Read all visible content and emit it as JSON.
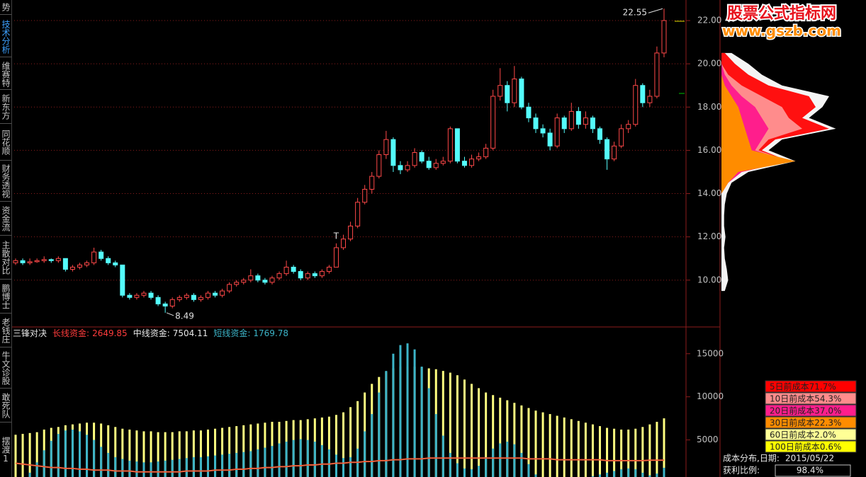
{
  "sidebar": {
    "tabs": [
      "势",
      "技术分析",
      "维赛特",
      "新东方",
      "同花顺",
      "财务透视",
      "资金流",
      "主散对比",
      "鹏博士",
      "老钱庄",
      "牛文诊股",
      "敢死队",
      "摆渡1"
    ],
    "active": 1
  },
  "logo": {
    "title": "股票公式指标网",
    "url": "www.gszb.com"
  },
  "chart_data": [
    {
      "type": "candlestick",
      "up_color": "#ff4848",
      "down_color": "#54fcfc",
      "ylim": [
        7.9,
        22.95
      ],
      "yticks": [
        {
          "value": 10,
          "label": "10.00"
        },
        {
          "value": 12,
          "label": "12.00"
        },
        {
          "value": 14,
          "label": "14.00"
        },
        {
          "value": 16,
          "label": "16.00"
        },
        {
          "value": 18,
          "label": "18.00"
        },
        {
          "value": 20,
          "label": "20.00"
        },
        {
          "value": 22,
          "label": "22.00"
        }
      ],
      "grid": true,
      "max_label": 22.55,
      "min_label": 8.49,
      "marker": "T",
      "ohlc": [
        [
          10.8,
          11.0,
          10.7,
          10.9
        ],
        [
          10.9,
          11.0,
          10.7,
          10.8
        ],
        [
          10.8,
          11.0,
          10.7,
          10.85
        ],
        [
          10.85,
          11.0,
          10.8,
          10.9
        ],
        [
          10.9,
          11.1,
          10.8,
          10.95
        ],
        [
          10.95,
          11.0,
          10.8,
          10.9
        ],
        [
          10.9,
          11.1,
          10.8,
          11.0
        ],
        [
          11.0,
          11.0,
          10.4,
          10.5
        ],
        [
          10.5,
          10.7,
          10.4,
          10.6
        ],
        [
          10.6,
          10.8,
          10.5,
          10.7
        ],
        [
          10.7,
          10.9,
          10.6,
          10.8
        ],
        [
          10.8,
          11.5,
          10.7,
          11.3
        ],
        [
          11.3,
          11.4,
          10.9,
          11.0
        ],
        [
          11.0,
          11.1,
          10.7,
          10.8
        ],
        [
          10.8,
          10.9,
          10.6,
          10.7
        ],
        [
          10.7,
          10.7,
          9.2,
          9.3
        ],
        [
          9.3,
          9.4,
          9.1,
          9.2
        ],
        [
          9.2,
          9.4,
          9.1,
          9.3
        ],
        [
          9.3,
          9.5,
          9.2,
          9.4
        ],
        [
          9.4,
          9.5,
          9.1,
          9.2
        ],
        [
          9.2,
          9.3,
          8.8,
          8.9
        ],
        [
          8.9,
          9.0,
          8.49,
          8.8
        ],
        [
          8.8,
          9.2,
          8.7,
          9.1
        ],
        [
          9.1,
          9.3,
          9.0,
          9.2
        ],
        [
          9.2,
          9.4,
          9.1,
          9.3
        ],
        [
          9.3,
          9.4,
          9.0,
          9.1
        ],
        [
          9.1,
          9.3,
          9.0,
          9.2
        ],
        [
          9.2,
          9.5,
          9.1,
          9.4
        ],
        [
          9.4,
          9.5,
          9.2,
          9.3
        ],
        [
          9.3,
          9.6,
          9.2,
          9.5
        ],
        [
          9.5,
          9.9,
          9.4,
          9.8
        ],
        [
          9.8,
          10.0,
          9.7,
          9.9
        ],
        [
          9.9,
          10.1,
          9.8,
          10.0
        ],
        [
          10.0,
          10.5,
          9.9,
          10.2
        ],
        [
          10.2,
          10.3,
          9.9,
          10.0
        ],
        [
          10.0,
          10.1,
          9.8,
          9.9
        ],
        [
          9.9,
          10.2,
          9.8,
          10.1
        ],
        [
          10.1,
          10.4,
          10.0,
          10.3
        ],
        [
          10.3,
          10.9,
          10.2,
          10.6
        ],
        [
          10.6,
          10.7,
          10.3,
          10.4
        ],
        [
          10.4,
          10.5,
          10.0,
          10.1
        ],
        [
          10.1,
          10.4,
          10.0,
          10.3
        ],
        [
          10.3,
          10.4,
          10.1,
          10.2
        ],
        [
          10.2,
          10.5,
          10.1,
          10.4
        ],
        [
          10.4,
          10.7,
          10.3,
          10.6
        ],
        [
          10.6,
          11.7,
          10.6,
          11.5
        ],
        [
          11.5,
          12.1,
          11.4,
          11.9
        ],
        [
          11.9,
          12.7,
          11.8,
          12.5
        ],
        [
          12.5,
          13.8,
          12.4,
          13.6
        ],
        [
          13.6,
          14.4,
          13.5,
          14.2
        ],
        [
          14.2,
          15.0,
          14.0,
          14.8
        ],
        [
          14.8,
          16.0,
          14.7,
          15.8
        ],
        [
          15.8,
          16.9,
          15.6,
          16.5
        ],
        [
          16.5,
          16.6,
          15.0,
          15.3
        ],
        [
          15.3,
          15.5,
          14.9,
          15.1
        ],
        [
          15.1,
          15.5,
          15.0,
          15.3
        ],
        [
          15.3,
          16.1,
          15.2,
          15.9
        ],
        [
          15.9,
          16.0,
          15.4,
          15.5
        ],
        [
          15.5,
          15.7,
          15.1,
          15.2
        ],
        [
          15.2,
          15.6,
          15.1,
          15.4
        ],
        [
          15.4,
          15.7,
          15.3,
          15.5
        ],
        [
          15.5,
          17.1,
          15.4,
          17.0
        ],
        [
          17.0,
          17.0,
          15.4,
          15.5
        ],
        [
          15.5,
          15.7,
          15.2,
          15.3
        ],
        [
          15.3,
          15.8,
          15.2,
          15.6
        ],
        [
          15.6,
          15.9,
          15.5,
          15.7
        ],
        [
          15.7,
          16.3,
          15.6,
          16.1
        ],
        [
          16.1,
          18.8,
          16.0,
          18.5
        ],
        [
          18.5,
          19.8,
          18.3,
          19.0
        ],
        [
          19.0,
          19.2,
          17.8,
          18.2
        ],
        [
          18.2,
          19.9,
          18.0,
          19.3
        ],
        [
          19.3,
          19.4,
          17.9,
          18.0
        ],
        [
          18.0,
          18.2,
          17.3,
          17.5
        ],
        [
          17.5,
          17.7,
          16.8,
          17.0
        ],
        [
          17.0,
          17.2,
          16.6,
          16.8
        ],
        [
          16.8,
          17.0,
          16.0,
          16.2
        ],
        [
          16.2,
          17.7,
          16.1,
          17.5
        ],
        [
          17.5,
          17.6,
          16.8,
          17.0
        ],
        [
          17.0,
          18.2,
          16.9,
          17.8
        ],
        [
          17.8,
          18.0,
          17.0,
          17.2
        ],
        [
          17.2,
          17.8,
          17.0,
          17.5
        ],
        [
          17.5,
          17.6,
          16.8,
          17.0
        ],
        [
          17.0,
          17.1,
          16.3,
          16.5
        ],
        [
          16.5,
          16.6,
          15.1,
          15.6
        ],
        [
          15.6,
          16.4,
          15.5,
          16.2
        ],
        [
          16.2,
          17.2,
          16.1,
          17.0
        ],
        [
          17.0,
          17.4,
          16.8,
          17.2
        ],
        [
          17.2,
          19.3,
          17.1,
          19.0
        ],
        [
          19.0,
          19.1,
          18.0,
          18.2
        ],
        [
          18.2,
          18.8,
          18.0,
          18.5
        ],
        [
          18.5,
          20.8,
          18.4,
          20.5
        ],
        [
          20.5,
          22.55,
          20.3,
          22.0
        ]
      ]
    },
    {
      "type": "money-flow",
      "title": "三锋对决",
      "ylim": [
        700,
        18100
      ],
      "yticks": [
        5000,
        10000,
        15000
      ],
      "series": [
        {
          "name": "长线资金:",
          "color": "#f0603c",
          "label_color": "#ff3c3c",
          "style": "line",
          "current": 2649.85,
          "values": [
            2300,
            2200,
            2100,
            2000,
            1900,
            1800,
            1800,
            1700,
            1700,
            1600,
            1600,
            1500,
            1500,
            1500,
            1400,
            1400,
            1400,
            1300,
            1300,
            1300,
            1300,
            1300,
            1300,
            1300,
            1400,
            1400,
            1400,
            1400,
            1500,
            1500,
            1500,
            1600,
            1600,
            1700,
            1700,
            1800,
            1800,
            1900,
            1900,
            2000,
            2000,
            2100,
            2100,
            2200,
            2200,
            2300,
            2300,
            2400,
            2400,
            2500,
            2500,
            2600,
            2600,
            2700,
            2700,
            2800,
            2800,
            2800,
            2900,
            2900,
            2900,
            2900,
            2900,
            2900,
            2900,
            2900,
            2900,
            2900,
            2900,
            2900,
            2900,
            2900,
            2800,
            2800,
            2800,
            2800,
            2700,
            2700,
            2700,
            2700,
            2700,
            2700,
            2700,
            2600,
            2600,
            2600,
            2600,
            2600,
            2600,
            2650,
            2650,
            2649.85
          ]
        },
        {
          "name": "中线资金:",
          "color": "#ffff80",
          "label_color": "#e8e8e8",
          "style": "bar",
          "current": 7504.11,
          "values": [
            5600,
            5700,
            5800,
            5900,
            6200,
            6400,
            6500,
            6700,
            6800,
            6900,
            7000,
            7000,
            6900,
            6700,
            6500,
            6300,
            6200,
            6100,
            6000,
            6000,
            5900,
            5900,
            5900,
            6000,
            6000,
            6100,
            6100,
            6200,
            6300,
            6400,
            6500,
            6600,
            6700,
            6800,
            6900,
            7000,
            7100,
            7100,
            7200,
            7300,
            7300,
            7400,
            7500,
            7600,
            7700,
            7900,
            8200,
            8800,
            9500,
            10500,
            11500,
            12300,
            12900,
            13300,
            13500,
            13500,
            13500,
            13400,
            13300,
            13200,
            13000,
            12800,
            12500,
            12000,
            11500,
            11000,
            10500,
            10200,
            9900,
            9600,
            9300,
            9000,
            8700,
            8400,
            8200,
            8000,
            7800,
            7600,
            7400,
            7200,
            7000,
            6800,
            6600,
            6400,
            6300,
            6200,
            6200,
            6300,
            6500,
            6800,
            7100,
            7504.11
          ]
        },
        {
          "name": "短线资金:",
          "color": "#3cb4c8",
          "label_color": "#3cb4c8",
          "style": "bar",
          "current": 1769.78,
          "values": [
            300,
            600,
            1200,
            2400,
            3800,
            4900,
            5700,
            6100,
            6200,
            6000,
            5600,
            5000,
            4200,
            3500,
            3000,
            2800,
            2600,
            2500,
            2400,
            2400,
            2500,
            2600,
            2700,
            2800,
            2900,
            3000,
            3000,
            3100,
            3200,
            3300,
            3400,
            3500,
            3600,
            3700,
            3900,
            4100,
            4300,
            4600,
            4800,
            5000,
            5100,
            5000,
            4800,
            4400,
            3900,
            3300,
            2900,
            3000,
            4000,
            6000,
            8000,
            10500,
            13000,
            15000,
            16000,
            16200,
            15500,
            13500,
            11000,
            8000,
            5500,
            3500,
            2300,
            1700,
            1600,
            2000,
            3000,
            4000,
            4600,
            4800,
            4500,
            3500,
            2200,
            1000,
            300,
            0,
            0,
            100,
            200,
            400,
            600,
            800,
            1000,
            1200,
            1400,
            1600,
            1700,
            1600,
            1200,
            900,
            1100,
            1769.78
          ]
        }
      ]
    },
    {
      "type": "cost-distribution",
      "ylim": [
        7.9,
        22.95
      ],
      "xlim": [
        0,
        200
      ],
      "levels": [
        9.5,
        10,
        10.5,
        11,
        11.5,
        12,
        12.5,
        13,
        13.5,
        14,
        14.5,
        15,
        15.5,
        16,
        16.5,
        17,
        17.5,
        18,
        18.5,
        19,
        19.5,
        20,
        20.5
      ],
      "profile": [
        {
          "color": "#f4f4f4",
          "values": [
            5,
            10,
            8,
            5,
            4,
            6,
            4,
            4,
            5,
            8,
            15,
            40,
            110,
            70,
            90,
            170,
            130,
            150,
            160,
            90,
            60,
            40,
            15
          ]
        },
        {
          "color": "#ff1010",
          "values": [
            0,
            0,
            0,
            0,
            0,
            0,
            0,
            0,
            0,
            0,
            10,
            30,
            100,
            60,
            80,
            160,
            120,
            140,
            130,
            70,
            40,
            20,
            5
          ]
        },
        {
          "color": "#ff8c8c",
          "values": [
            0,
            0,
            0,
            0,
            0,
            0,
            0,
            0,
            0,
            0,
            10,
            30,
            100,
            55,
            70,
            120,
            100,
            90,
            60,
            30,
            10,
            0,
            0
          ]
        },
        {
          "color": "#ff1e8c",
          "values": [
            0,
            0,
            0,
            0,
            0,
            0,
            0,
            0,
            0,
            0,
            10,
            30,
            100,
            50,
            60,
            70,
            60,
            50,
            30,
            15,
            5,
            0,
            0
          ]
        },
        {
          "color": "#ff8c00",
          "values": [
            0,
            0,
            0,
            0,
            0,
            0,
            0,
            0,
            0,
            0,
            10,
            25,
            110,
            45,
            40,
            35,
            30,
            25,
            15,
            5,
            0,
            0,
            0
          ]
        }
      ],
      "legend": [
        {
          "name": "5日前成本",
          "share": "71.7%",
          "color": "#ff0000"
        },
        {
          "name": "10日前成本",
          "share": "54.3%",
          "color": "#ff8c8c"
        },
        {
          "name": "20日前成本",
          "share": "37.0%",
          "color": "#ff1e8c"
        },
        {
          "name": "30日前成本",
          "share": "22.3%",
          "color": "#ff8c00"
        },
        {
          "name": "60日前成本",
          "share": "2.0%",
          "color": "#ffff96"
        },
        {
          "name": "100日前成本",
          "share": "0.6%",
          "color": "#ffff00"
        }
      ],
      "date_label": "成本分布,日期:",
      "date": "2015/05/22",
      "profit_label": "获利比例:",
      "profit": "98.4%"
    }
  ]
}
